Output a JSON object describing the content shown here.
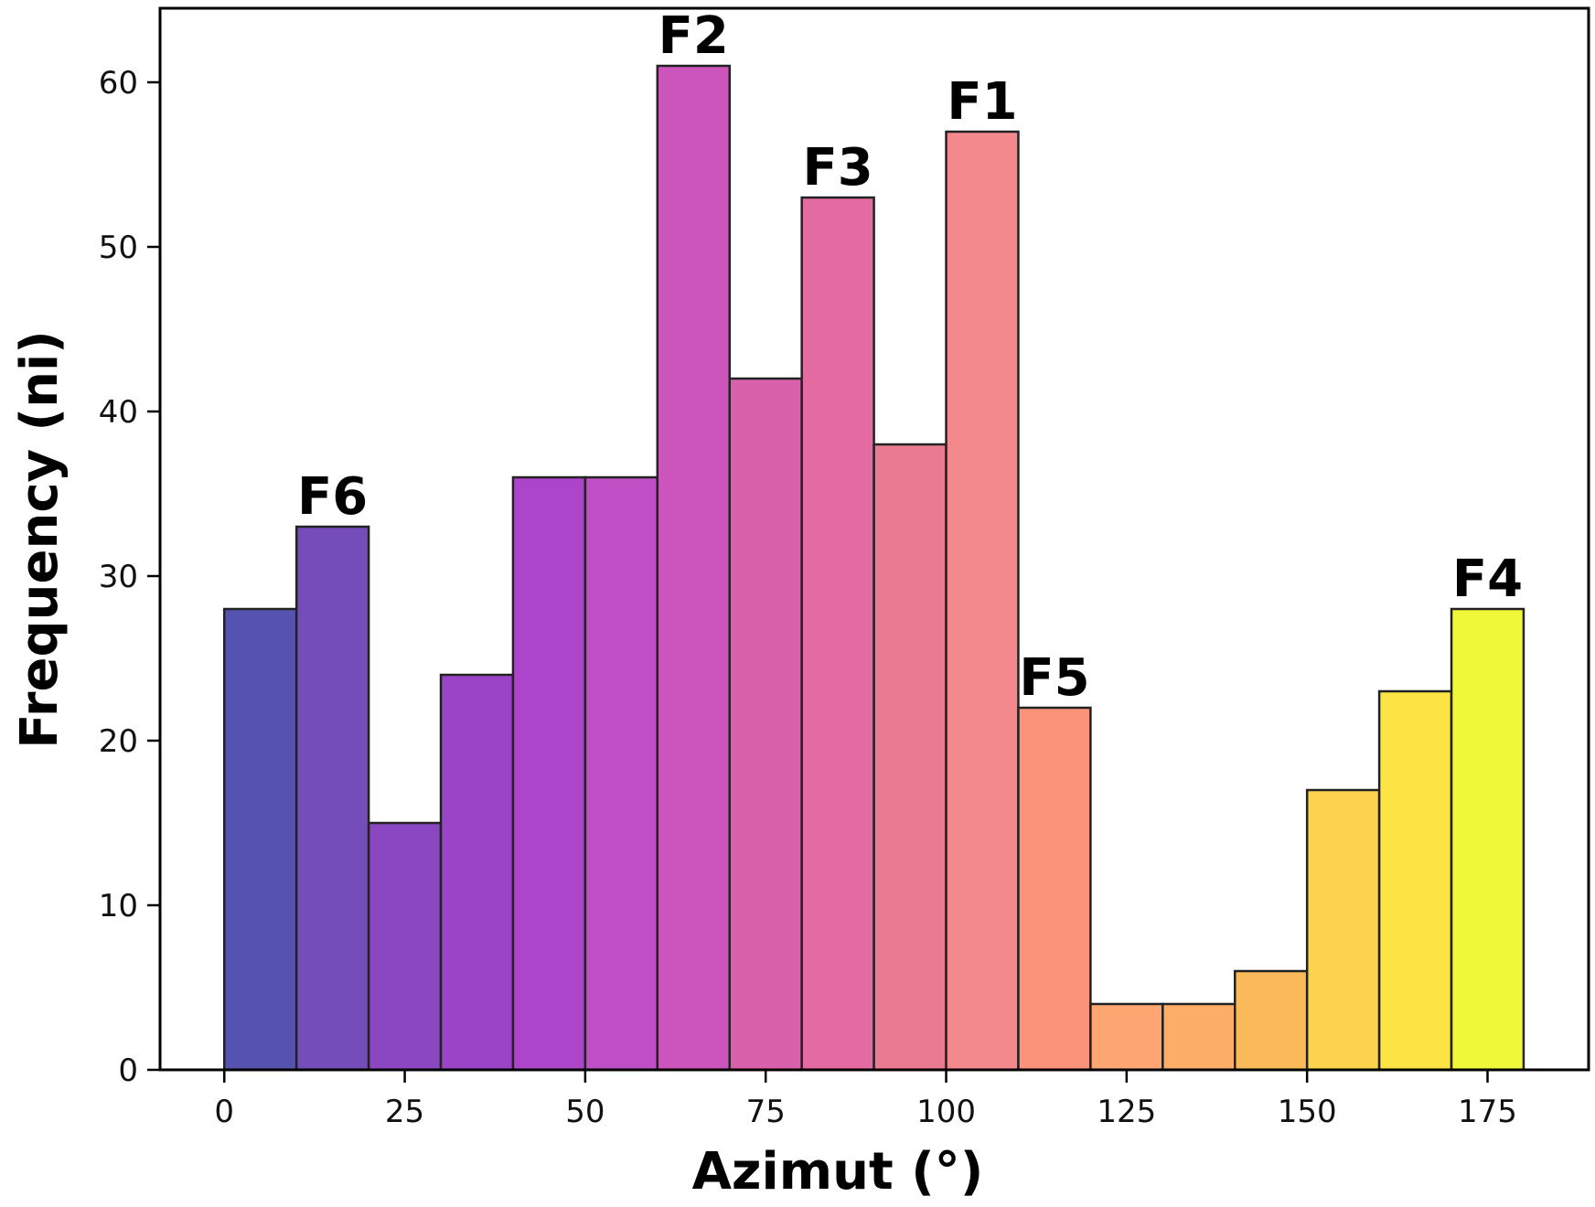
{
  "chart_data": {
    "type": "bar",
    "title": "",
    "xlabel": "Azimut (°)",
    "ylabel": "Frequency (ni)",
    "bin_edges": [
      0,
      10,
      20,
      30,
      40,
      50,
      60,
      70,
      80,
      90,
      100,
      110,
      120,
      130,
      140,
      150,
      160,
      170,
      180
    ],
    "values": [
      28,
      33,
      15,
      24,
      36,
      36,
      61,
      42,
      53,
      38,
      57,
      22,
      4,
      4,
      6,
      17,
      23,
      28
    ],
    "colors": [
      "#5652b0",
      "#744dbb",
      "#8a47c1",
      "#9b44c7",
      "#ad45cb",
      "#be4fc4",
      "#cc55bb",
      "#d960aa",
      "#e36ba1",
      "#e97a90",
      "#f3888d",
      "#fa937a",
      "#fda672",
      "#fcae69",
      "#fbba59",
      "#fdd24d",
      "#fbe444",
      "#f0f83a"
    ],
    "annotations": [
      {
        "text": "F6",
        "bin": 1
      },
      {
        "text": "F2",
        "bin": 6
      },
      {
        "text": "F3",
        "bin": 8
      },
      {
        "text": "F1",
        "bin": 10
      },
      {
        "text": "F5",
        "bin": 11
      },
      {
        "text": "F4",
        "bin": 17
      }
    ],
    "xticks": [
      0,
      25,
      50,
      75,
      100,
      125,
      150,
      175
    ],
    "yticks": [
      0,
      10,
      20,
      30,
      40,
      50,
      60
    ],
    "xlim": [
      -8.9,
      189
    ],
    "ylim": [
      0,
      64.5
    ],
    "grid": false
  }
}
